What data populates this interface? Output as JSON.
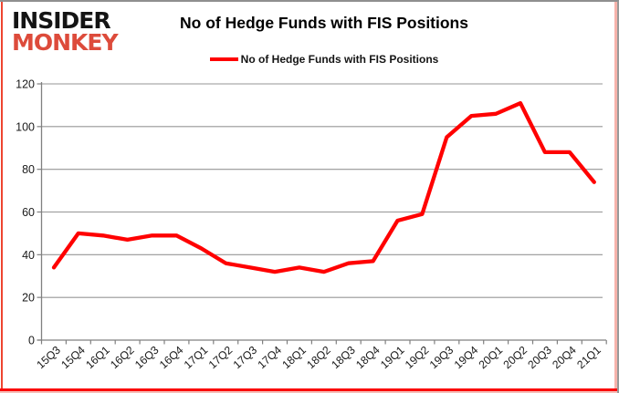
{
  "logo": {
    "line1": "INSIDER",
    "line2": "MONKEY"
  },
  "header": {
    "title": "No of Hedge Funds with FIS Positions"
  },
  "legend": {
    "label": "No of Hedge Funds with FIS Positions",
    "marker_color": "#ff0000"
  },
  "chart_data": {
    "type": "line",
    "title": "No of Hedge Funds with FIS Positions",
    "categories": [
      "15Q3",
      "15Q4",
      "16Q1",
      "16Q2",
      "16Q3",
      "16Q4",
      "17Q1",
      "17Q2",
      "17Q3",
      "17Q4",
      "18Q1",
      "18Q2",
      "18Q3",
      "18Q4",
      "19Q1",
      "19Q2",
      "19Q3",
      "19Q4",
      "20Q1",
      "20Q2",
      "20Q3",
      "20Q4",
      "21Q1"
    ],
    "series": [
      {
        "name": "No of Hedge Funds with FIS Positions",
        "color": "#ff0000",
        "values": [
          34,
          50,
          49,
          47,
          49,
          49,
          43,
          36,
          34,
          32,
          34,
          32,
          36,
          37,
          56,
          59,
          95,
          105,
          106,
          111,
          88,
          88,
          74
        ]
      }
    ],
    "xlabel": "",
    "ylabel": "",
    "ylim": [
      0,
      120
    ],
    "yticks": [
      0,
      20,
      40,
      60,
      80,
      100,
      120
    ],
    "grid": true,
    "legend_position": "top-center"
  },
  "colors": {
    "line": "#ff0000",
    "gridline": "#969696",
    "axis": "#808080",
    "tick_label": "#1a1a1a",
    "title": "#000000",
    "logo_black": "#141414",
    "logo_red": "#dd4b3b",
    "frame_bottom_red": "#fb0a0a",
    "frame_left_red": "#ee4530",
    "frame_right_pink": "#f6b3ab",
    "frame_gray": "#8f8f8f"
  }
}
